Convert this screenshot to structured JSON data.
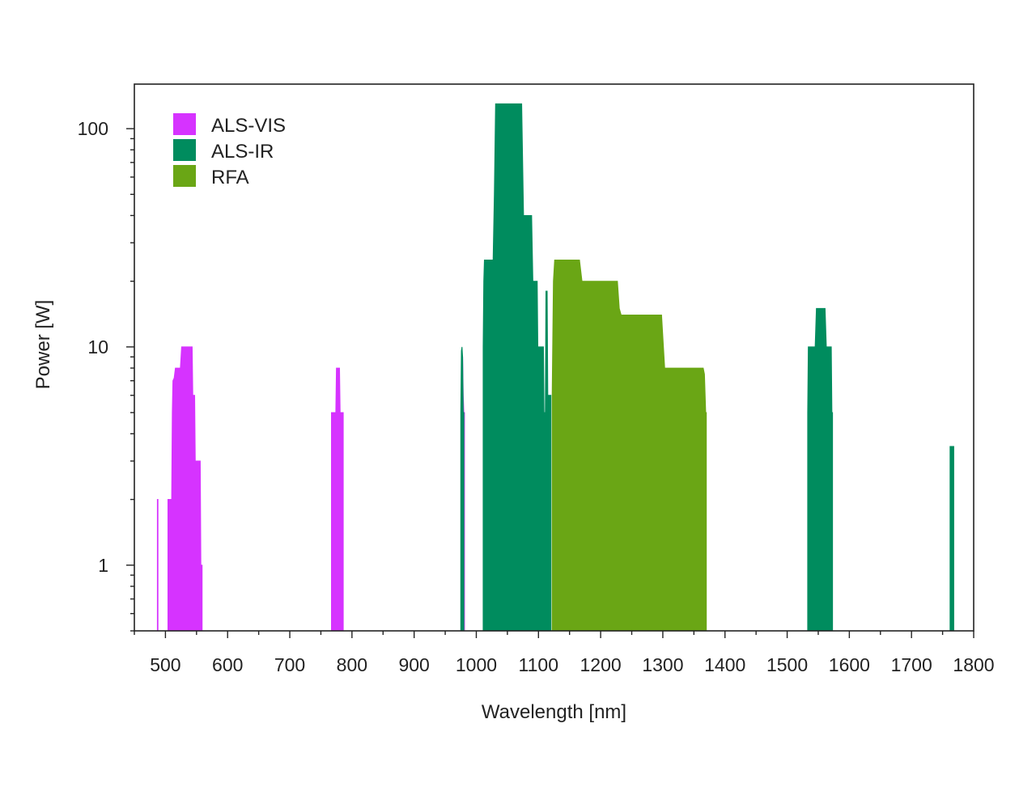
{
  "chart_data": {
    "type": "area",
    "xlabel": "Wavelength [nm]",
    "ylabel": "Power [W]",
    "xlim": [
      450,
      1800
    ],
    "ylim": [
      0.5,
      160
    ],
    "yscale": "log",
    "x_ticks": [
      "500",
      "600",
      "700",
      "800",
      "900",
      "1000",
      "1100",
      "1200",
      "1300",
      "1400",
      "1500",
      "1600",
      "1700",
      "1800"
    ],
    "x_tick_values": [
      500,
      600,
      700,
      800,
      900,
      1000,
      1100,
      1200,
      1300,
      1400,
      1500,
      1600,
      1700,
      1800
    ],
    "y_ticks": [
      "1",
      "10",
      "100"
    ],
    "y_tick_values": [
      1,
      10,
      100
    ],
    "grid": false,
    "legend_position": "top-left",
    "series": [
      {
        "name": "ALS-VIS",
        "color": "#d633ff",
        "segments": [
          [
            [
              487,
              2
            ],
            [
              488,
              2
            ]
          ],
          [
            [
              504,
              2
            ],
            [
              510,
              2
            ],
            [
              511,
              5
            ],
            [
              512,
              7
            ],
            [
              514,
              7.2
            ],
            [
              516,
              8
            ],
            [
              524,
              8
            ],
            [
              526,
              10
            ],
            [
              543,
              10
            ],
            [
              544,
              6
            ],
            [
              547,
              6
            ],
            [
              548,
              3
            ],
            [
              556,
              3
            ],
            [
              557,
              1
            ],
            [
              559,
              1
            ]
          ],
          [
            [
              767,
              5
            ],
            [
              774,
              5
            ],
            [
              775,
              8
            ],
            [
              780,
              8
            ],
            [
              781,
              5
            ],
            [
              786,
              5
            ]
          ],
          [
            [
              977,
              6
            ],
            [
              978,
              9
            ],
            [
              979,
              6
            ],
            [
              980,
              5
            ],
            [
              981,
              5
            ]
          ]
        ]
      },
      {
        "name": "ALS-IR",
        "color": "#008c5e",
        "segments": [
          [
            [
              975,
              5
            ],
            [
              976,
              9.6
            ],
            [
              977,
              10
            ],
            [
              978,
              9
            ],
            [
              979,
              5
            ],
            [
              980,
              5
            ]
          ],
          [
            [
              1011,
              10
            ],
            [
              1012,
              20
            ],
            [
              1013,
              25
            ],
            [
              1027,
              25
            ],
            [
              1029,
              50
            ],
            [
              1031,
              130
            ],
            [
              1073,
              130
            ],
            [
              1076,
              40
            ],
            [
              1089,
              40
            ],
            [
              1091,
              20
            ],
            [
              1098,
              20
            ],
            [
              1099,
              10
            ],
            [
              1108,
              10
            ],
            [
              1109,
              5
            ],
            [
              1111,
              5
            ],
            [
              1112,
              18
            ],
            [
              1114,
              18
            ],
            [
              1115,
              6
            ],
            [
              1120,
              6
            ]
          ],
          [
            [
              1533,
              5
            ],
            [
              1534,
              10
            ],
            [
              1545,
              10
            ],
            [
              1547,
              15
            ],
            [
              1561,
              15
            ],
            [
              1563,
              10
            ],
            [
              1571,
              10
            ],
            [
              1572,
              5
            ],
            [
              1573,
              5
            ]
          ],
          [
            [
              1762,
              3.5
            ],
            [
              1768,
              3.5
            ]
          ]
        ]
      },
      {
        "name": "RFA",
        "color": "#6aa615",
        "segments": [
          [
            [
              1122,
              6
            ],
            [
              1124,
              20
            ],
            [
              1126,
              25
            ],
            [
              1166,
              25
            ],
            [
              1170,
              20
            ],
            [
              1227,
              20
            ],
            [
              1230,
              15
            ],
            [
              1233,
              14
            ],
            [
              1298,
              14
            ],
            [
              1303,
              8
            ],
            [
              1365,
              8
            ],
            [
              1367,
              7.5
            ],
            [
              1369,
              5
            ],
            [
              1370,
              5
            ]
          ]
        ]
      }
    ]
  }
}
